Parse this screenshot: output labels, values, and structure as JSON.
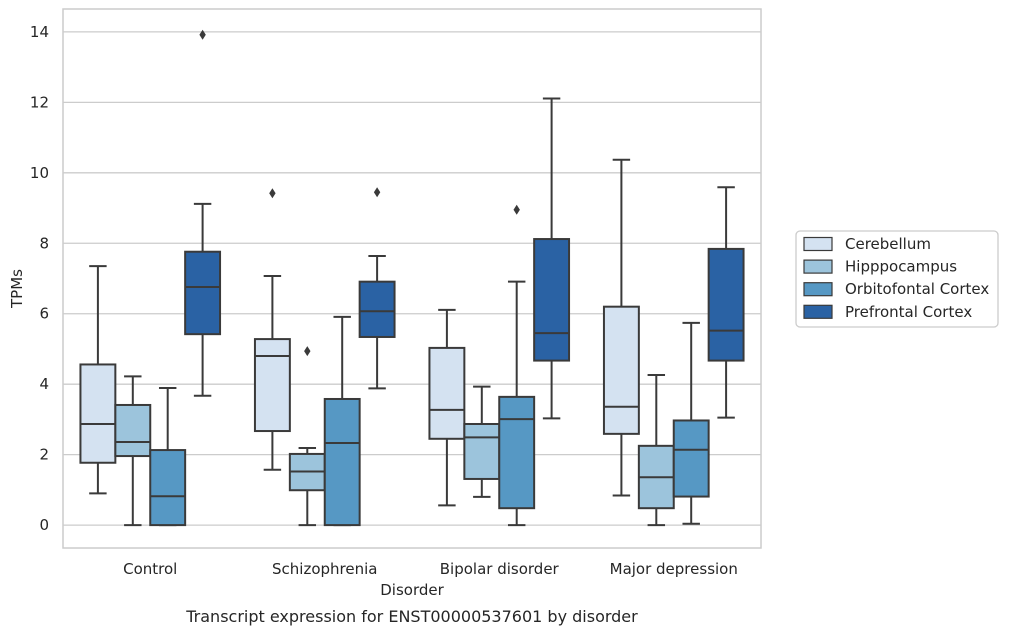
{
  "chart_data": {
    "type": "box",
    "xlabel": "Disorder",
    "ylabel": "TPMs",
    "caption": "Transcript expression for ENST00000537601 by disorder",
    "ylim": [
      -0.65,
      14.65
    ],
    "yticks": [
      0,
      2,
      4,
      6,
      8,
      10,
      12,
      14
    ],
    "grid": "horizontal",
    "legend_position": "right",
    "categories": [
      "Control",
      "Schizophrenia",
      "Bipolar disorder",
      "Major depression"
    ],
    "series": [
      {
        "name": "Cerebellum",
        "color": "#d4e2f1",
        "boxes": [
          {
            "whisker_low": 0.9,
            "q1": 1.77,
            "median": 2.87,
            "q3": 4.56,
            "whisker_high": 7.35,
            "outliers": []
          },
          {
            "whisker_low": 1.57,
            "q1": 2.67,
            "median": 4.8,
            "q3": 5.28,
            "whisker_high": 7.07,
            "outliers": [
              9.42
            ]
          },
          {
            "whisker_low": 0.56,
            "q1": 2.45,
            "median": 3.27,
            "q3": 5.03,
            "whisker_high": 6.11,
            "outliers": []
          },
          {
            "whisker_low": 0.84,
            "q1": 2.59,
            "median": 3.36,
            "q3": 6.2,
            "whisker_high": 10.37,
            "outliers": []
          }
        ]
      },
      {
        "name": "Hipppocampus",
        "color": "#9cc4dc",
        "boxes": [
          {
            "whisker_low": 0.0,
            "q1": 1.96,
            "median": 2.36,
            "q3": 3.41,
            "whisker_high": 4.22,
            "outliers": []
          },
          {
            "whisker_low": 0.0,
            "q1": 0.99,
            "median": 1.52,
            "q3": 2.02,
            "whisker_high": 2.19,
            "outliers": [
              4.94
            ]
          },
          {
            "whisker_low": 0.8,
            "q1": 1.31,
            "median": 2.49,
            "q3": 2.87,
            "whisker_high": 3.93,
            "outliers": []
          },
          {
            "whisker_low": 0.0,
            "q1": 0.48,
            "median": 1.36,
            "q3": 2.25,
            "whisker_high": 4.26,
            "outliers": []
          }
        ]
      },
      {
        "name": "Orbitofontal Cortex",
        "color": "#5698c4",
        "boxes": [
          {
            "whisker_low": 0.0,
            "q1": 0.0,
            "median": 0.82,
            "q3": 2.13,
            "whisker_high": 3.89,
            "outliers": []
          },
          {
            "whisker_low": 0.0,
            "q1": 0.0,
            "median": 2.33,
            "q3": 3.58,
            "whisker_high": 5.91,
            "outliers": []
          },
          {
            "whisker_low": 0.0,
            "q1": 0.48,
            "median": 3.01,
            "q3": 3.64,
            "whisker_high": 6.91,
            "outliers": [
              8.95
            ]
          },
          {
            "whisker_low": 0.04,
            "q1": 0.81,
            "median": 2.14,
            "q3": 2.97,
            "whisker_high": 5.74,
            "outliers": []
          }
        ]
      },
      {
        "name": "Prefrontal Cortex",
        "color": "#2a62a4",
        "boxes": [
          {
            "whisker_low": 3.67,
            "q1": 5.42,
            "median": 6.76,
            "q3": 7.76,
            "whisker_high": 9.12,
            "outliers": [
              13.92
            ]
          },
          {
            "whisker_low": 3.88,
            "q1": 5.34,
            "median": 6.07,
            "q3": 6.91,
            "whisker_high": 7.64,
            "outliers": [
              9.45
            ]
          },
          {
            "whisker_low": 3.03,
            "q1": 4.67,
            "median": 5.45,
            "q3": 8.12,
            "whisker_high": 12.11,
            "outliers": []
          },
          {
            "whisker_low": 3.05,
            "q1": 4.67,
            "median": 5.52,
            "q3": 7.84,
            "whisker_high": 9.59,
            "outliers": []
          }
        ]
      }
    ]
  }
}
